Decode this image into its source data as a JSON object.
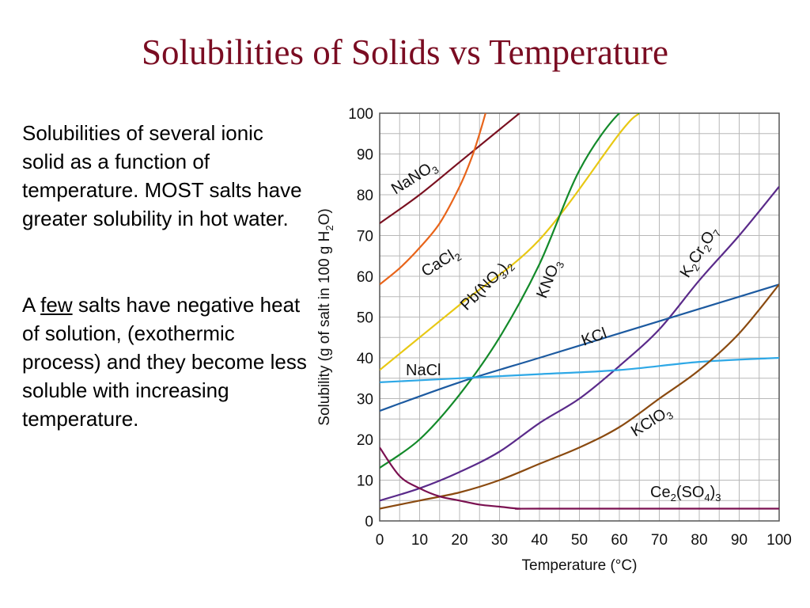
{
  "slide": {
    "title": "Solubilities of Solids vs Temperature",
    "para1": "Solubilities of several ionic solid as a function of temperature. MOST salts have greater solubility in hot water.",
    "para2_prefix": "A ",
    "para2_underlined": "few",
    "para2_rest": " salts have negative heat of solution, (exothermic process) and they become less soluble with increasing temperature."
  },
  "chart_data": {
    "type": "line",
    "title": "",
    "xlabel": "Temperature (°C)",
    "ylabel": "Solubility (g of salt in 100 g H2O)",
    "xlim": [
      0,
      100
    ],
    "ylim": [
      0,
      100
    ],
    "xticks": [
      0,
      10,
      20,
      30,
      40,
      50,
      60,
      70,
      80,
      90,
      100
    ],
    "yticks": [
      0,
      10,
      20,
      30,
      40,
      50,
      60,
      70,
      80,
      90,
      100
    ],
    "grid": true,
    "series": [
      {
        "name": "NaNO3",
        "color": "#7a1020",
        "x": [
          0,
          10,
          20,
          30,
          35
        ],
        "y": [
          73,
          80,
          88,
          96,
          100
        ]
      },
      {
        "name": "CaCl2",
        "color": "#e8641a",
        "x": [
          0,
          5,
          10,
          15,
          20,
          23,
          25,
          26.5
        ],
        "y": [
          58,
          62,
          67,
          73,
          82,
          89,
          95,
          100
        ]
      },
      {
        "name": "Pb(NO3)2",
        "color": "#e8c814",
        "x": [
          0,
          20,
          40,
          60,
          65
        ],
        "y": [
          37,
          53,
          69,
          95,
          100
        ]
      },
      {
        "name": "KNO3",
        "color": "#138a2a",
        "x": [
          0,
          10,
          20,
          30,
          40,
          50,
          60,
          65
        ],
        "y": [
          13,
          20,
          31,
          45,
          63,
          86,
          100,
          100
        ]
      },
      {
        "name": "K2Cr2O7",
        "color": "#5a2a8a",
        "x": [
          0,
          10,
          20,
          30,
          40,
          50,
          60,
          70,
          80,
          90,
          100
        ],
        "y": [
          5,
          8,
          12,
          17,
          24,
          30,
          38,
          47,
          59,
          70,
          82
        ]
      },
      {
        "name": "KCl",
        "color": "#1c5aa0",
        "x": [
          0,
          20,
          40,
          60,
          80,
          100
        ],
        "y": [
          27,
          34,
          40,
          46,
          52,
          58
        ]
      },
      {
        "name": "NaCl",
        "color": "#2ea8e6",
        "x": [
          0,
          20,
          40,
          60,
          80,
          100
        ],
        "y": [
          34,
          35,
          36,
          37,
          39,
          40
        ]
      },
      {
        "name": "KClO3",
        "color": "#8a4a10",
        "x": [
          0,
          10,
          20,
          30,
          40,
          50,
          60,
          70,
          80,
          90,
          100
        ],
        "y": [
          3,
          5,
          7,
          10,
          14,
          18,
          23,
          30,
          37,
          46,
          58
        ]
      },
      {
        "name": "Ce2(SO4)3",
        "color": "#7a1050",
        "x": [
          0,
          5,
          10,
          15,
          20,
          25,
          30,
          35,
          40,
          100
        ],
        "y": [
          18,
          11,
          8,
          6,
          5,
          4,
          3.5,
          3,
          3,
          3
        ]
      }
    ],
    "curve_labels": [
      {
        "series": "NaNO3",
        "parts": [
          [
            "NaNO",
            false
          ],
          [
            "3",
            true
          ]
        ]
      },
      {
        "series": "CaCl2",
        "parts": [
          [
            "CaCl",
            false
          ],
          [
            "2",
            true
          ]
        ]
      },
      {
        "series": "Pb(NO3)2",
        "parts": [
          [
            "Pb(NO",
            false
          ],
          [
            "3",
            true
          ],
          [
            ")",
            false
          ],
          [
            "2",
            true
          ]
        ]
      },
      {
        "series": "KNO3",
        "parts": [
          [
            "KNO",
            false
          ],
          [
            "3",
            true
          ]
        ]
      },
      {
        "series": "K2Cr2O7",
        "parts": [
          [
            "K",
            false
          ],
          [
            "2",
            true
          ],
          [
            "Cr",
            false
          ],
          [
            "2",
            true
          ],
          [
            "O",
            false
          ],
          [
            "7",
            true
          ]
        ]
      },
      {
        "series": "KCl",
        "parts": [
          [
            "KCl",
            false
          ]
        ]
      },
      {
        "series": "NaCl",
        "parts": [
          [
            "NaCl",
            false
          ]
        ]
      },
      {
        "series": "KClO3",
        "parts": [
          [
            "KClO",
            false
          ],
          [
            "3",
            true
          ]
        ]
      },
      {
        "series": "Ce2(SO4)3",
        "parts": [
          [
            "Ce",
            false
          ],
          [
            "2",
            true
          ],
          [
            "(SO",
            false
          ],
          [
            "4",
            true
          ],
          [
            ")",
            false
          ],
          [
            "3",
            true
          ]
        ]
      }
    ]
  }
}
